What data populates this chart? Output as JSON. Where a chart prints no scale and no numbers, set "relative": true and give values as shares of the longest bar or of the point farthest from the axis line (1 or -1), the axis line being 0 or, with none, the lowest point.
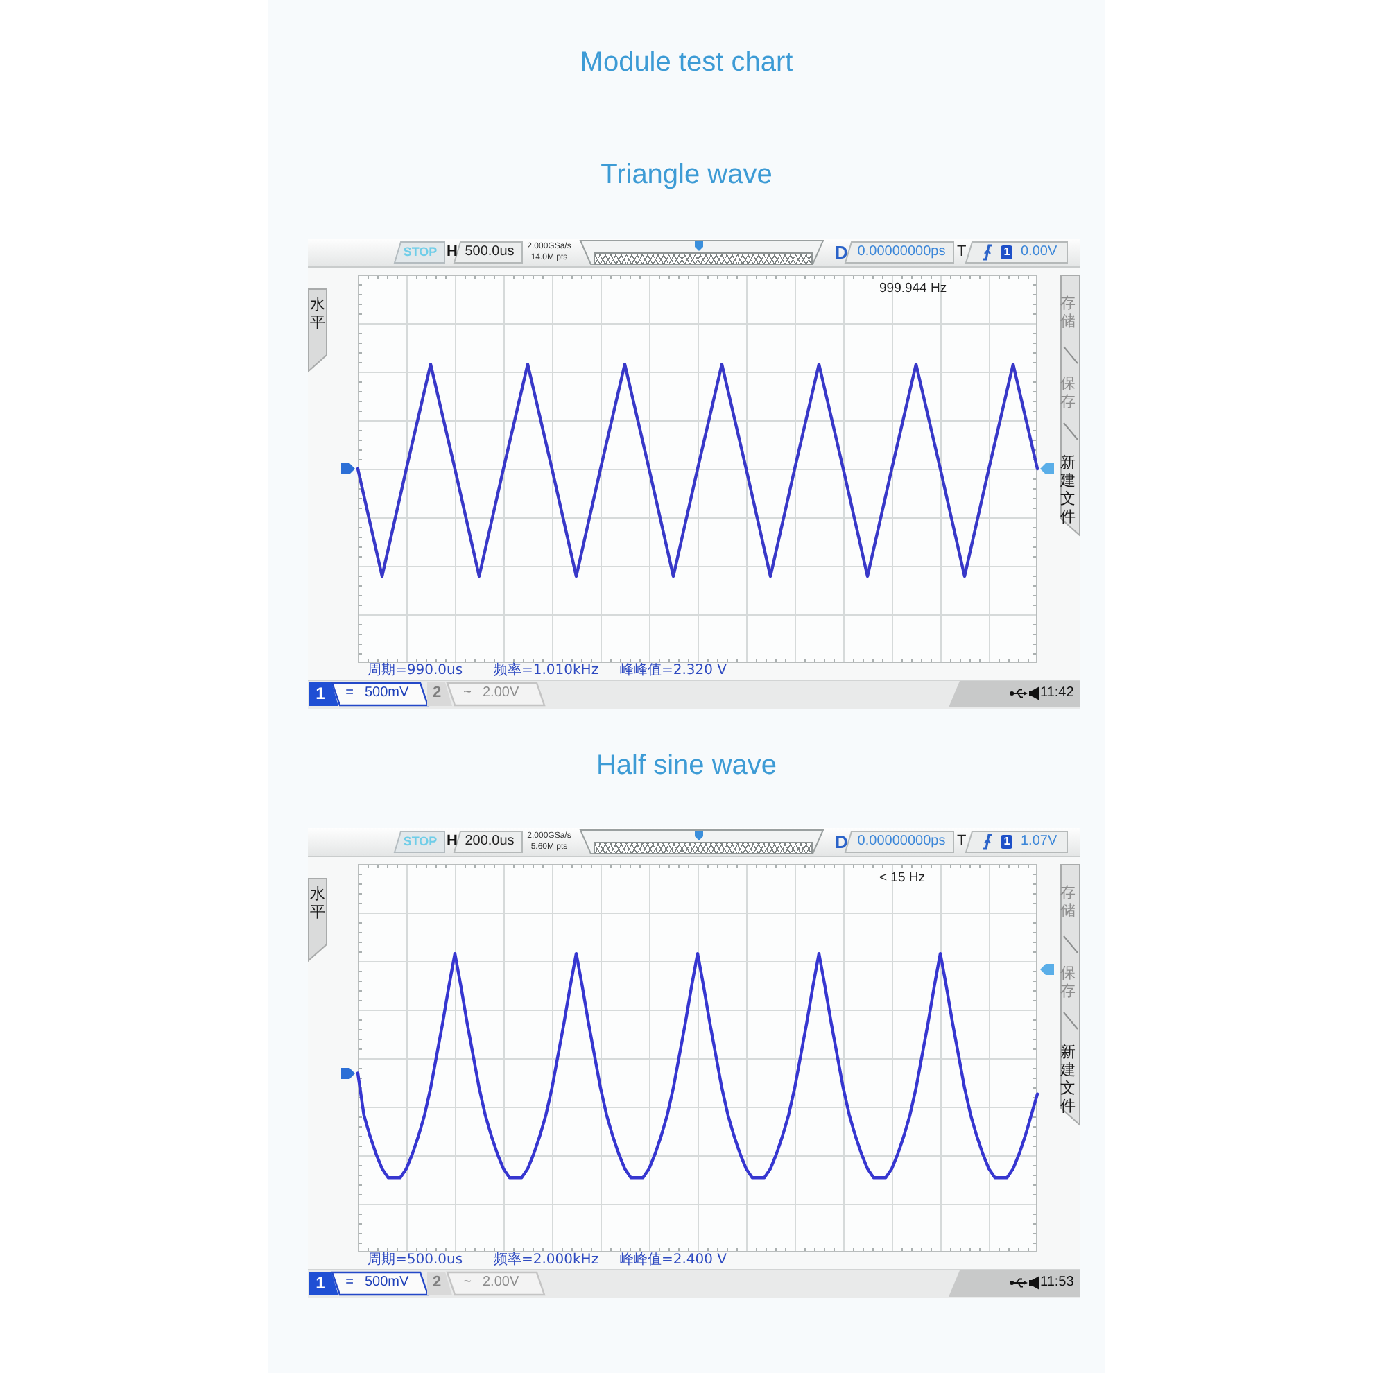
{
  "chart_data": [
    {
      "type": "line",
      "title": "Module test chart",
      "subtitle": "Triangle wave",
      "relative": true,
      "grid": true,
      "marker": "none",
      "line_style": "solid",
      "color": "#3838c8",
      "categories": [
        null,
        null,
        null,
        null,
        null,
        null,
        null,
        null,
        null,
        null,
        null,
        null,
        null,
        null,
        null,
        null,
        null,
        null,
        null,
        null,
        null,
        null,
        null,
        null,
        null,
        null,
        null,
        null,
        null
      ],
      "values": [
        0.65,
        0.29,
        0.65,
        1,
        0.65,
        0.29,
        0.65,
        1,
        0.65,
        0.29,
        0.65,
        1,
        0.65,
        0.29,
        0.65,
        1,
        0.65,
        0.29,
        0.65,
        1,
        0.65,
        0.29,
        0.65,
        1,
        0.65,
        0.29,
        0.65,
        1,
        0.65
      ],
      "annotations": [
        "STOP",
        "H",
        "500.0us",
        "2.000GSa/s",
        "14.0M pts",
        "D",
        "0.00000000ps",
        "T",
        "1",
        "0.00V",
        "999.944 Hz",
        "水平",
        "存储",
        "保存",
        "新建文件",
        "周期=990.0us",
        "频率=1.010kHz",
        "峰峰值=2.320 V",
        "1",
        "=",
        "500mV",
        "2",
        "~",
        "2.00V",
        "11:42"
      ]
    },
    {
      "type": "line",
      "title": "Half sine wave",
      "relative": true,
      "grid": true,
      "marker": "none",
      "line_style": "solid",
      "color": "#3636d0",
      "categories": [
        null,
        null,
        null,
        null,
        null,
        null,
        null,
        null,
        null,
        null,
        null,
        null,
        null,
        null,
        null,
        null,
        null,
        null,
        null,
        null,
        null,
        null,
        null,
        null,
        null,
        null,
        null,
        null,
        null,
        null,
        null,
        null,
        null,
        null,
        null,
        null,
        null,
        null,
        null,
        null,
        null,
        null,
        null,
        null,
        null,
        null,
        null,
        null,
        null,
        null,
        null,
        null,
        null,
        null,
        null,
        null,
        null,
        null,
        null,
        null,
        null,
        null,
        null,
        null,
        null,
        null,
        null,
        null,
        null,
        null,
        null,
        null,
        null,
        null,
        null,
        null,
        null,
        null,
        null,
        null,
        null,
        null,
        null,
        null,
        null,
        null,
        null,
        null,
        null,
        null,
        null,
        null,
        null,
        null,
        null,
        null,
        null,
        null,
        null,
        null,
        null,
        null,
        null,
        null,
        null,
        null,
        null,
        null,
        null,
        null,
        null,
        null,
        null
      ],
      "values": [
        0.6,
        0.46,
        0.39,
        0.33,
        0.28,
        0.25,
        0.25,
        0.25,
        0.28,
        0.33,
        0.39,
        0.46,
        0.55,
        0.66,
        0.77,
        0.89,
        1,
        0.89,
        0.77,
        0.66,
        0.55,
        0.46,
        0.39,
        0.33,
        0.28,
        0.25,
        0.25,
        0.25,
        0.28,
        0.33,
        0.39,
        0.46,
        0.55,
        0.66,
        0.77,
        0.89,
        1,
        0.89,
        0.77,
        0.66,
        0.55,
        0.46,
        0.39,
        0.33,
        0.28,
        0.25,
        0.25,
        0.25,
        0.28,
        0.33,
        0.39,
        0.46,
        0.55,
        0.66,
        0.77,
        0.89,
        1,
        0.89,
        0.77,
        0.66,
        0.55,
        0.46,
        0.39,
        0.33,
        0.28,
        0.25,
        0.25,
        0.25,
        0.28,
        0.33,
        0.39,
        0.46,
        0.55,
        0.66,
        0.77,
        0.89,
        1,
        0.89,
        0.77,
        0.66,
        0.55,
        0.46,
        0.39,
        0.33,
        0.28,
        0.25,
        0.25,
        0.25,
        0.28,
        0.33,
        0.39,
        0.46,
        0.55,
        0.66,
        0.77,
        0.89,
        1,
        0.89,
        0.77,
        0.66,
        0.55,
        0.46,
        0.39,
        0.33,
        0.28,
        0.25,
        0.25,
        0.25,
        0.28,
        0.33,
        0.39,
        0.46,
        0.53
      ],
      "annotations": [
        "STOP",
        "H",
        "200.0us",
        "2.000GSa/s",
        "5.60M pts",
        "D",
        "0.00000000ps",
        "T",
        "1",
        "1.07V",
        "< 15 Hz",
        "水平",
        "存储",
        "保存",
        "新建文件",
        "周期=500.0us",
        "频率=2.000kHz",
        "峰峰值=2.400 V",
        "1",
        "=",
        "500mV",
        "2",
        "~",
        "2.00V",
        "11:53"
      ]
    }
  ]
}
